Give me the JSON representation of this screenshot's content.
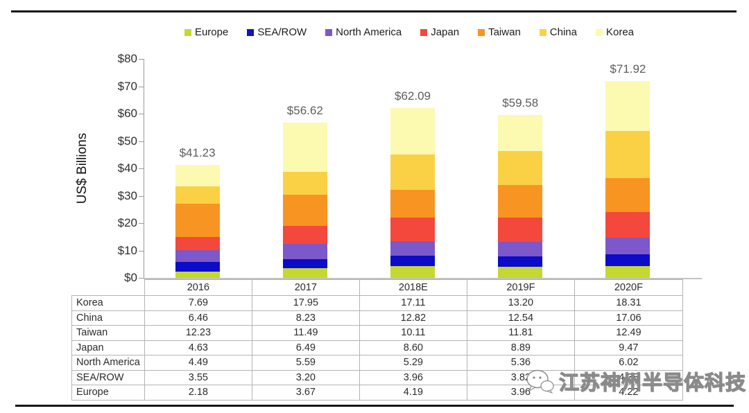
{
  "chart_data": {
    "type": "bar",
    "stacked": true,
    "title": "",
    "ylabel": "US$ Billions",
    "ylim": [
      0,
      80
    ],
    "ytick_labels": [
      "$0",
      "$10",
      "$20",
      "$30",
      "$40",
      "$50",
      "$60",
      "$70",
      "$80"
    ],
    "grid": false,
    "legend_position": "top",
    "categories": [
      "2016",
      "2017",
      "2018E",
      "2019F",
      "2020F"
    ],
    "totals": [
      "$41.23",
      "$56.62",
      "$62.09",
      "$59.58",
      "$71.92"
    ],
    "series": [
      {
        "name": "Europe",
        "color": "#c5d832",
        "values": [
          2.18,
          3.67,
          4.19,
          3.96,
          4.22
        ]
      },
      {
        "name": "SEA/ROW",
        "color": "#0b0bc8",
        "values": [
          3.55,
          3.2,
          3.96,
          3.82,
          4.35
        ]
      },
      {
        "name": "North America",
        "color": "#7c58ca",
        "values": [
          4.49,
          5.59,
          5.29,
          5.36,
          6.02
        ]
      },
      {
        "name": "Japan",
        "color": "#f4483c",
        "values": [
          4.63,
          6.49,
          8.6,
          8.89,
          9.47
        ]
      },
      {
        "name": "Taiwan",
        "color": "#f89421",
        "values": [
          12.23,
          11.49,
          10.11,
          11.81,
          12.49
        ]
      },
      {
        "name": "China",
        "color": "#fad145",
        "values": [
          6.46,
          8.23,
          12.82,
          12.54,
          17.06
        ]
      },
      {
        "name": "Korea",
        "color": "#fcf9b0",
        "values": [
          7.69,
          17.95,
          17.11,
          13.2,
          18.31
        ]
      }
    ]
  },
  "legend": {
    "items": [
      {
        "label": "Europe",
        "color": "#c5d832"
      },
      {
        "label": "SEA/ROW",
        "color": "#1515b4"
      },
      {
        "label": "North America",
        "color": "#7c58ca"
      },
      {
        "label": "Japan",
        "color": "#f4483c"
      },
      {
        "label": "Taiwan",
        "color": "#f89421"
      },
      {
        "label": "China",
        "color": "#fad145"
      },
      {
        "label": "Korea",
        "color": "#fcf9b0"
      }
    ]
  },
  "table": {
    "columns": [
      "2016",
      "2017",
      "2018E",
      "2019F",
      "2020F"
    ],
    "rows": [
      {
        "label": "Korea",
        "values": [
          "7.69",
          "17.95",
          "17.11",
          "13.20",
          "18.31"
        ]
      },
      {
        "label": "China",
        "values": [
          "6.46",
          "8.23",
          "12.82",
          "12.54",
          "17.06"
        ]
      },
      {
        "label": "Taiwan",
        "values": [
          "12.23",
          "11.49",
          "10.11",
          "11.81",
          "12.49"
        ]
      },
      {
        "label": "Japan",
        "values": [
          "4.63",
          "6.49",
          "8.60",
          "8.89",
          "9.47"
        ]
      },
      {
        "label": "North America",
        "values": [
          "4.49",
          "5.59",
          "5.29",
          "5.36",
          "6.02"
        ]
      },
      {
        "label": "SEA/ROW",
        "values": [
          "3.55",
          "3.20",
          "3.96",
          "3.82",
          "4.35"
        ]
      },
      {
        "label": "Europe",
        "values": [
          "2.18",
          "3.67",
          "4.19",
          "3.96",
          "4.22"
        ]
      }
    ]
  },
  "watermark": {
    "text": "江苏神州半导体科技"
  }
}
